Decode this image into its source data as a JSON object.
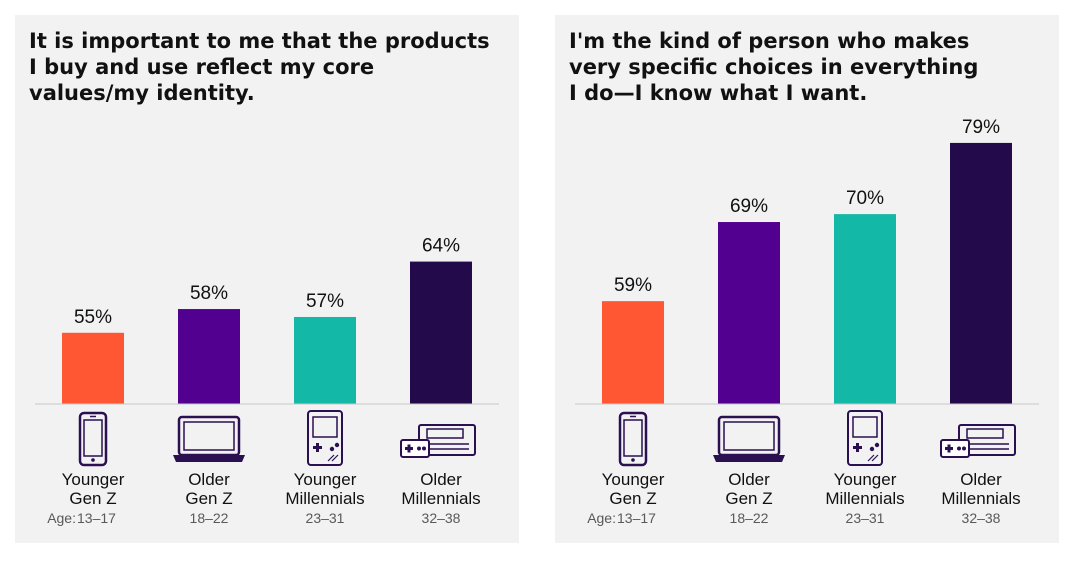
{
  "colors": {
    "background": "#f2f2f2",
    "axis": "#c8c8c8",
    "icon": "#2a1050"
  },
  "age_prefix": "Age:",
  "chart_data": [
    {
      "type": "bar",
      "title": "It is important to me that the products\nI buy and use reflect my core\nvalues/my identity.",
      "categories": [
        "Younger Gen Z",
        "Older Gen Z",
        "Younger Millennials",
        "Older Millennials"
      ],
      "category_lines": [
        [
          "Younger",
          "Gen Z"
        ],
        [
          "Older",
          "Gen Z"
        ],
        [
          "Younger",
          "Millennials"
        ],
        [
          "Older",
          "Millennials"
        ]
      ],
      "ages": [
        "13–17",
        "18–22",
        "23–31",
        "32–38"
      ],
      "icons": [
        "smartphone-icon",
        "laptop-icon",
        "handheld-console-icon",
        "game-console-icon"
      ],
      "values": [
        55,
        58,
        57,
        64
      ],
      "value_labels": [
        "55%",
        "58%",
        "57%",
        "64%"
      ],
      "colors": [
        "#ff5733",
        "#52008f",
        "#14b8a6",
        "#230a4b"
      ],
      "ylim": [
        46,
        80
      ],
      "xlabel": "",
      "ylabel": "",
      "grid": false
    },
    {
      "type": "bar",
      "title": "I'm the kind of person who makes\nvery specific choices in everything\nI do—I know what I want.",
      "categories": [
        "Younger Gen Z",
        "Older Gen Z",
        "Younger Millennials",
        "Older Millennials"
      ],
      "category_lines": [
        [
          "Younger",
          "Gen Z"
        ],
        [
          "Older",
          "Gen Z"
        ],
        [
          "Younger",
          "Millennials"
        ],
        [
          "Older",
          "Millennials"
        ]
      ],
      "ages": [
        "13–17",
        "18–22",
        "23–31",
        "32–38"
      ],
      "icons": [
        "smartphone-icon",
        "laptop-icon",
        "handheld-console-icon",
        "game-console-icon"
      ],
      "values": [
        59,
        69,
        70,
        79
      ],
      "value_labels": [
        "59%",
        "69%",
        "70%",
        "79%"
      ],
      "colors": [
        "#ff5733",
        "#52008f",
        "#14b8a6",
        "#230a4b"
      ],
      "ylim": [
        46,
        80
      ],
      "xlabel": "",
      "ylabel": "",
      "grid": false
    }
  ]
}
